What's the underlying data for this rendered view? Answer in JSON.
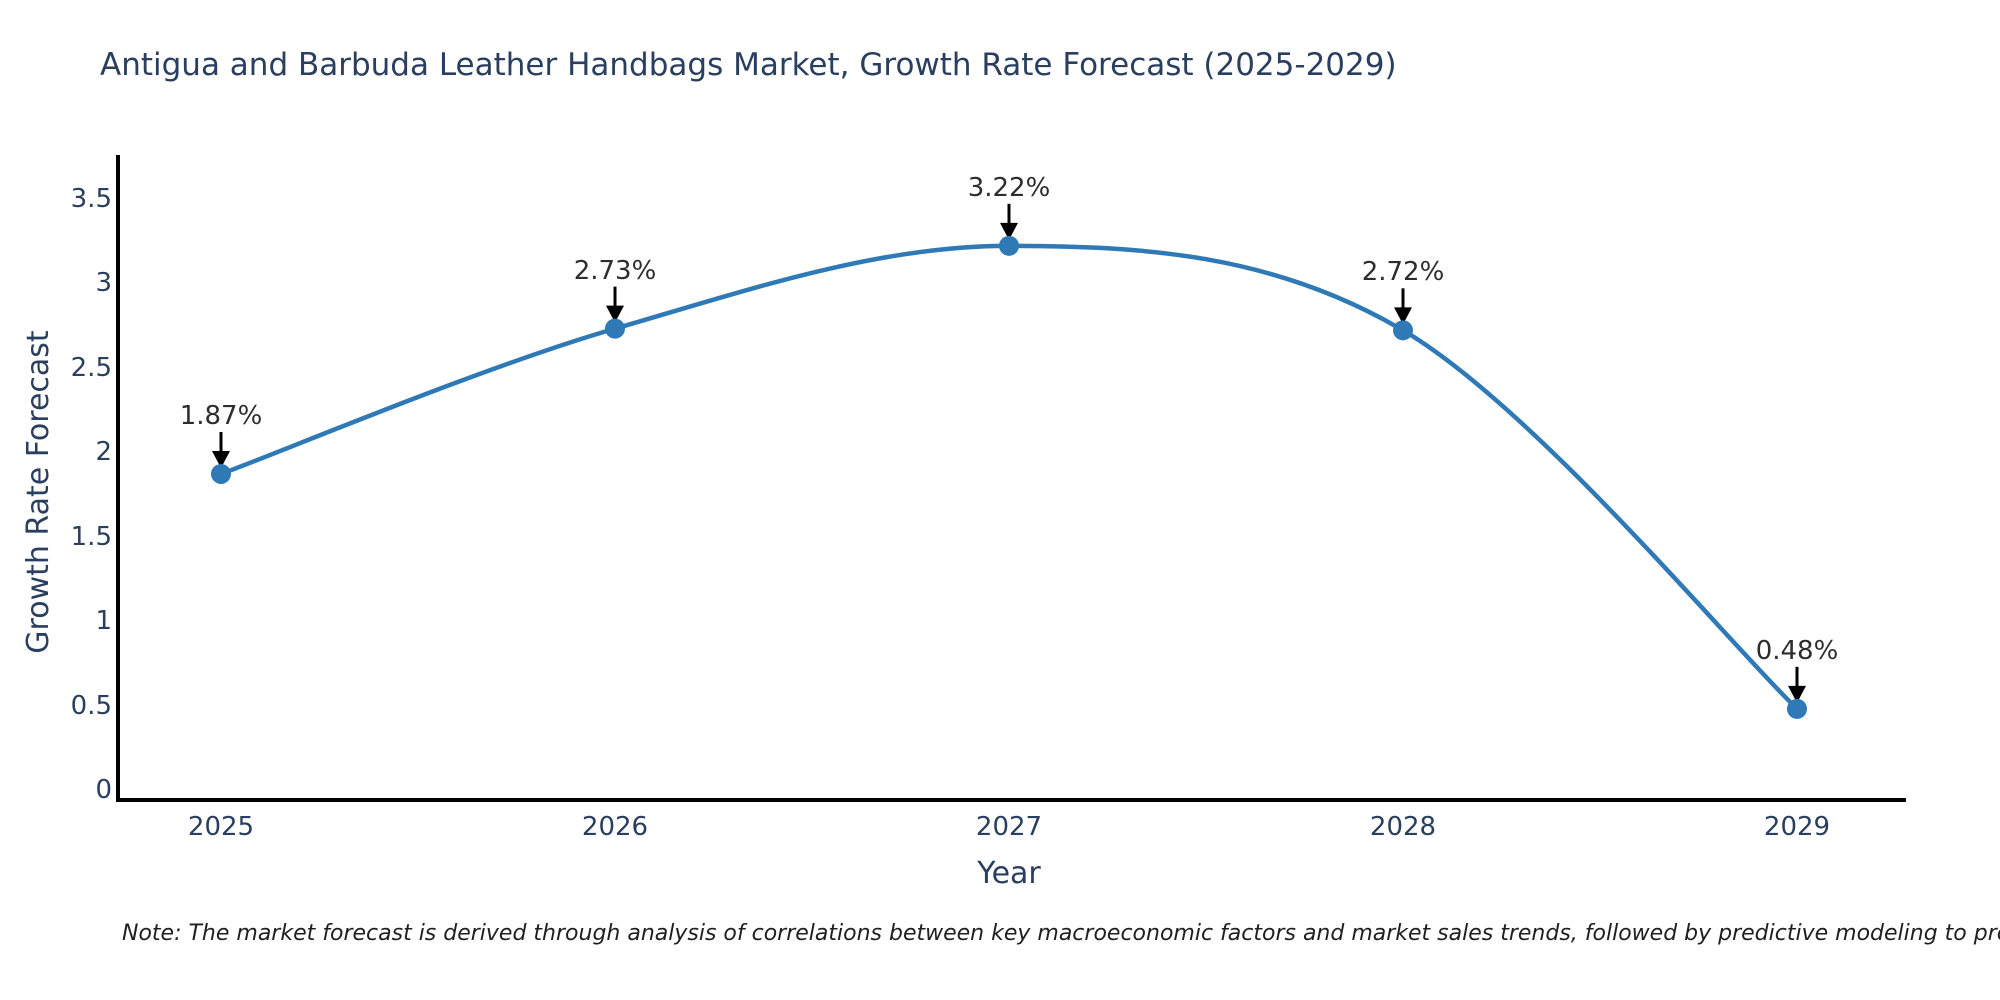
{
  "title": "Antigua and Barbuda Leather Handbags Market, Growth Rate Forecast (2025-2029)",
  "note": "Note: The market forecast is derived through analysis of correlations between key macroeconomic factors and market sales trends, followed by predictive modeling to project future sales",
  "chart_data": {
    "type": "line",
    "title": "Antigua and Barbuda Leather Handbags Market, Growth Rate Forecast (2025-2029)",
    "xlabel": "Year",
    "ylabel": "Growth Rate Forecast",
    "x": [
      2025,
      2026,
      2027,
      2028,
      2029
    ],
    "series": [
      {
        "name": "Growth Rate Forecast",
        "values": [
          1.87,
          2.73,
          3.22,
          2.72,
          0.48
        ]
      }
    ],
    "point_labels": [
      "1.87%",
      "2.73%",
      "3.22%",
      "2.72%",
      "0.48%"
    ],
    "yticks": [
      0,
      0.5,
      1,
      1.5,
      2,
      2.5,
      3,
      3.5
    ],
    "ylim": [
      0,
      3.76
    ],
    "grid": false,
    "legend": false,
    "line_style": "spline",
    "colors": {
      "line": "#2e79b6",
      "marker": "#2e79b6",
      "axis": "#000000",
      "text": "#2a3f5f",
      "annotation_text": "#2d2d2d",
      "arrow": "#000000"
    }
  }
}
